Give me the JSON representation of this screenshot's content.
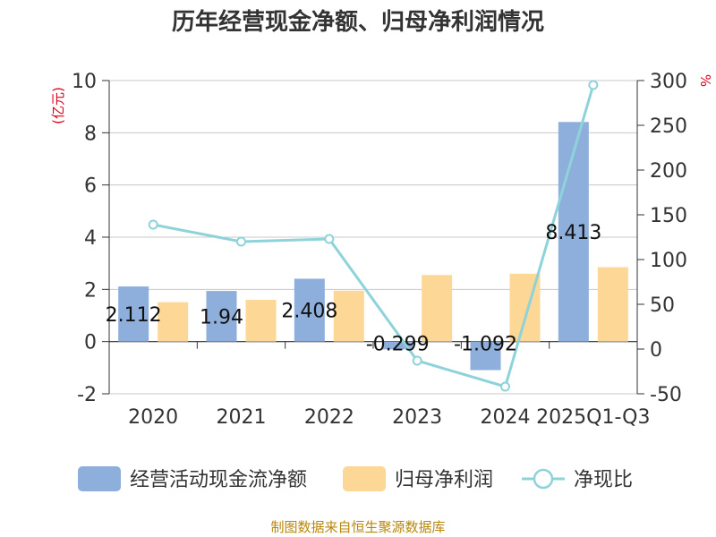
{
  "chart_data": {
    "type": "bar",
    "title": "历年经营现金净额、归母净利润情况",
    "categories": [
      "2020",
      "2021",
      "2022",
      "2023",
      "2024",
      "2025Q1-Q3"
    ],
    "series": [
      {
        "name": "经营活动现金流净额",
        "type": "bar",
        "axis": "left",
        "color": "#8eaedb",
        "values": [
          2.112,
          1.94,
          2.408,
          -0.299,
          -1.092,
          8.413
        ],
        "labels": [
          "2.112",
          "1.94",
          "2.408",
          "-0.299",
          "-1.092",
          "8.413"
        ]
      },
      {
        "name": "归母净利润",
        "type": "bar",
        "axis": "left",
        "color": "#fdd795",
        "values": [
          1.51,
          1.6,
          1.95,
          2.55,
          2.6,
          2.85
        ]
      },
      {
        "name": "净现比",
        "type": "line",
        "axis": "right",
        "color": "#8dd3d9",
        "values": [
          139,
          120,
          123,
          -13,
          -42,
          295
        ]
      }
    ],
    "left_axis": {
      "unit": "(亿元)",
      "ylim": [
        -2,
        10
      ],
      "ticks": [
        -2,
        0,
        2,
        4,
        6,
        8,
        10
      ]
    },
    "right_axis": {
      "unit": "%",
      "ylim": [
        -50,
        300
      ],
      "ticks": [
        -50,
        0,
        50,
        100,
        150,
        200,
        250,
        300
      ]
    },
    "grid": true,
    "legend": "bottom"
  },
  "source_text": "制图数据来自恒生聚源数据库"
}
